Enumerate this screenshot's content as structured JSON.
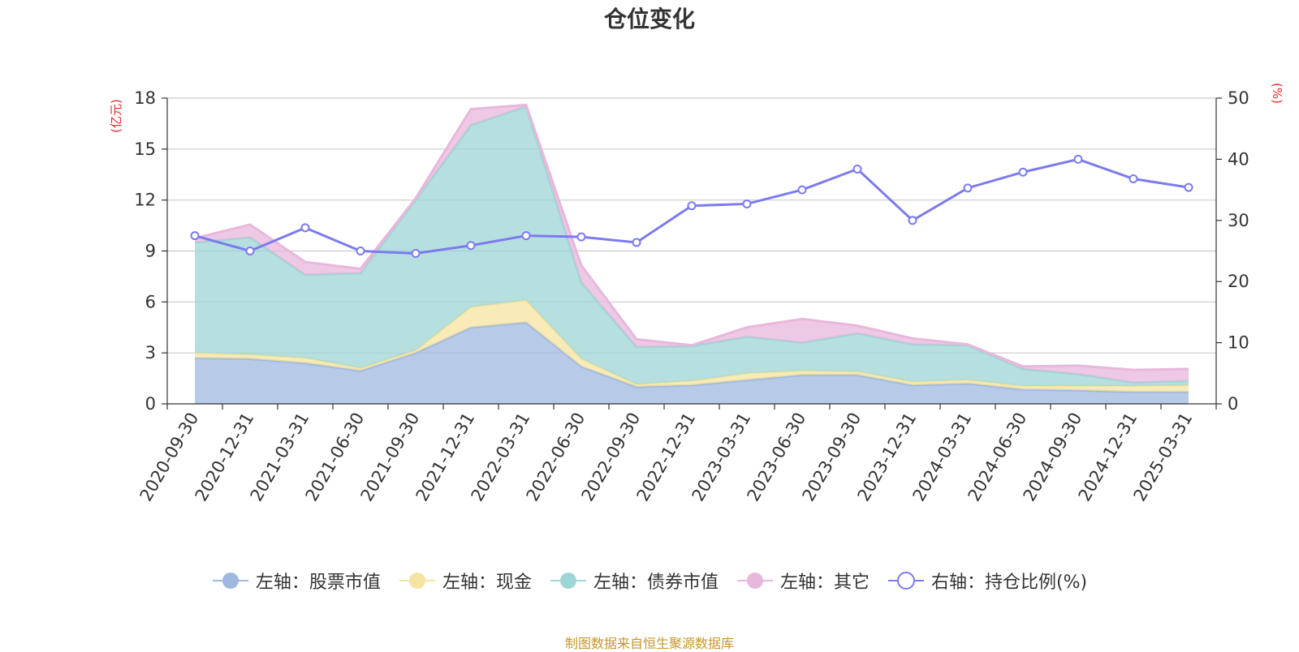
{
  "chart_data": {
    "type": "area",
    "title": "仓位变化",
    "left_axis_unit": "(亿元)",
    "right_axis_unit": "(%)",
    "categories": [
      "2020-09-30",
      "2020-12-31",
      "2021-03-31",
      "2021-06-30",
      "2021-09-30",
      "2021-12-31",
      "2022-03-31",
      "2022-06-30",
      "2022-09-30",
      "2022-12-31",
      "2023-03-31",
      "2023-06-30",
      "2023-09-30",
      "2023-12-31",
      "2024-03-31",
      "2024-06-30",
      "2024-09-30",
      "2024-12-31",
      "2025-03-31"
    ],
    "left_axis": {
      "min": 0,
      "max": 18,
      "ticks": [
        0,
        3,
        6,
        9,
        12,
        15,
        18
      ]
    },
    "right_axis": {
      "min": 0,
      "max": 50,
      "ticks": [
        0,
        10,
        20,
        30,
        40,
        50
      ]
    },
    "grid": true,
    "legend_position": "bottom",
    "series": [
      {
        "name": "左轴：股票市值",
        "axis": "left",
        "stacked": true,
        "color": "#9fb8e0",
        "values": [
          2.7,
          2.65,
          2.4,
          1.95,
          3.0,
          4.5,
          4.8,
          2.2,
          1.0,
          1.1,
          1.4,
          1.7,
          1.7,
          1.1,
          1.2,
          0.85,
          0.8,
          0.7,
          0.7
        ]
      },
      {
        "name": "左轴：现金",
        "axis": "left",
        "stacked": true,
        "color": "#f5e4a0",
        "values": [
          0.3,
          0.25,
          0.3,
          0.15,
          0.15,
          1.2,
          1.3,
          0.45,
          0.15,
          0.25,
          0.4,
          0.25,
          0.2,
          0.2,
          0.2,
          0.2,
          0.25,
          0.35,
          0.4
        ]
      },
      {
        "name": "左轴：债券市值",
        "axis": "left",
        "stacked": true,
        "color": "#9dd6d6",
        "values": [
          6.5,
          6.9,
          4.9,
          5.6,
          8.85,
          10.7,
          11.4,
          4.5,
          2.2,
          2.05,
          2.15,
          1.65,
          2.25,
          2.2,
          2.05,
          1.0,
          0.7,
          0.2,
          0.25
        ]
      },
      {
        "name": "左轴：其它",
        "axis": "left",
        "stacked": true,
        "color": "#e8b7dc",
        "values": [
          0.25,
          0.75,
          0.75,
          0.25,
          0.1,
          0.95,
          0.1,
          1.0,
          0.45,
          0.05,
          0.55,
          1.4,
          0.45,
          0.35,
          0.05,
          0.15,
          0.5,
          0.75,
          0.7
        ]
      },
      {
        "name": "右轴：持仓比例(%)",
        "axis": "right",
        "type": "line",
        "color": "#7b7bef",
        "values": [
          27.5,
          25.0,
          28.8,
          25.0,
          24.6,
          25.9,
          27.5,
          27.3,
          26.4,
          32.4,
          32.7,
          35.0,
          38.4,
          30.0,
          35.3,
          37.9,
          40.0,
          36.8,
          35.4
        ]
      }
    ]
  },
  "source_note": "制图数据来自恒生聚源数据库"
}
